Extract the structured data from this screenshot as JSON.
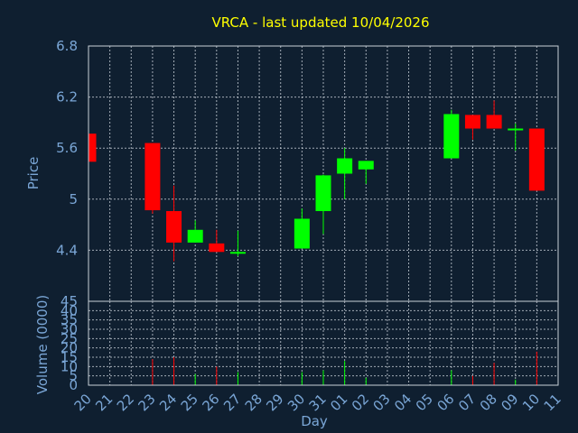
{
  "chart_data": {
    "type": "candlestick",
    "title": "VRCA - last updated 10/04/2026",
    "ylabel": "Price",
    "volume_label": "Volume (0000)",
    "xlabel": "Day",
    "price_ticks": [
      "6.8",
      "6.2",
      "5.6",
      "5",
      "4.4"
    ],
    "price_tick_values": [
      6.8,
      6.2,
      5.6,
      5.0,
      4.4
    ],
    "ylim": [
      3.8,
      6.8
    ],
    "volume_ticks": [
      "45",
      "40",
      "35",
      "30",
      "25",
      "20",
      "15",
      "10",
      "5",
      "0"
    ],
    "volume_tick_values": [
      45,
      40,
      35,
      30,
      25,
      20,
      15,
      10,
      5,
      0
    ],
    "volume_ylim": [
      0,
      45
    ],
    "day_labels": [
      "20",
      "21",
      "22",
      "23",
      "24",
      "25",
      "26",
      "27",
      "28",
      "29",
      "30",
      "31",
      "01",
      "02",
      "03",
      "04",
      "05",
      "06",
      "07",
      "08",
      "09",
      "10",
      "11"
    ],
    "colors": {
      "up": "#00ff00",
      "down": "#ff0000",
      "background": "#0f1f30",
      "title": "#ffff00",
      "axis_text": "#7aa6d6"
    },
    "candles": [
      {
        "day": "20",
        "open": 5.77,
        "high": 5.77,
        "low": 5.44,
        "close": 5.44,
        "volume": 0
      },
      {
        "day": "23",
        "open": 5.66,
        "high": 5.66,
        "low": 4.83,
        "close": 4.87,
        "volume": 14
      },
      {
        "day": "24",
        "open": 4.86,
        "high": 5.16,
        "low": 4.27,
        "close": 4.49,
        "volume": 15
      },
      {
        "day": "25",
        "open": 4.49,
        "high": 4.75,
        "low": 4.49,
        "close": 4.64,
        "volume": 6
      },
      {
        "day": "26",
        "open": 4.48,
        "high": 4.64,
        "low": 4.38,
        "close": 4.38,
        "volume": 10
      },
      {
        "day": "27",
        "open": 4.37,
        "high": 4.63,
        "low": 4.33,
        "close": 4.38,
        "volume": 7
      },
      {
        "day": "30",
        "open": 4.42,
        "high": 4.89,
        "low": 4.42,
        "close": 4.77,
        "volume": 7
      },
      {
        "day": "31",
        "open": 4.86,
        "high": 5.29,
        "low": 4.59,
        "close": 5.28,
        "volume": 8
      },
      {
        "day": "01",
        "open": 5.3,
        "high": 5.6,
        "low": 5.0,
        "close": 5.48,
        "volume": 13
      },
      {
        "day": "02",
        "open": 5.35,
        "high": 5.45,
        "low": 5.18,
        "close": 5.45,
        "volume": 4
      },
      {
        "day": "06",
        "open": 5.48,
        "high": 6.05,
        "low": 5.48,
        "close": 6.0,
        "volume": 8
      },
      {
        "day": "07",
        "open": 5.99,
        "high": 5.99,
        "low": 5.7,
        "close": 5.83,
        "volume": 5
      },
      {
        "day": "08",
        "open": 5.99,
        "high": 6.16,
        "low": 5.83,
        "close": 5.83,
        "volume": 12
      },
      {
        "day": "09",
        "open": 5.81,
        "high": 5.89,
        "low": 5.57,
        "close": 5.83,
        "volume": 3
      },
      {
        "day": "10",
        "open": 5.83,
        "high": 5.83,
        "low": 5.1,
        "close": 5.1,
        "volume": 18
      }
    ]
  }
}
